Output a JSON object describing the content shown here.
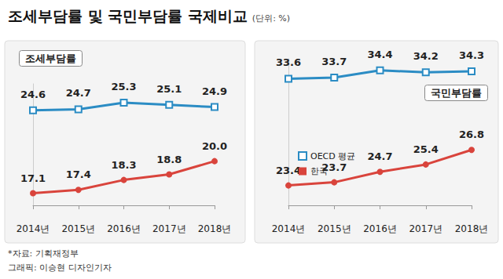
{
  "title": "조세부담률 및 국민부담률 국제비교",
  "unit": "(단위: %)",
  "source": "*자료: 기획재정부",
  "credit": "그래픽: 이승현 디자인기자",
  "chart_data": [
    {
      "type": "line",
      "title": "조세부담률",
      "categories": [
        "2014년",
        "2015년",
        "2016년",
        "2017년",
        "2018년"
      ],
      "series": [
        {
          "name": "OECD 평균",
          "color": "#2b8cc4",
          "marker": "square",
          "values": [
            24.6,
            24.7,
            25.3,
            25.1,
            24.9
          ]
        },
        {
          "name": "한국",
          "color": "#d9443c",
          "marker": "circle",
          "values": [
            17.1,
            17.4,
            18.3,
            18.8,
            20.0
          ],
          "value_labels": [
            "17.1",
            "17.4",
            "18.3",
            "18.8",
            "20.0"
          ]
        }
      ],
      "ylim": [
        16,
        27
      ],
      "tick_labels": "x",
      "data_labels": true
    },
    {
      "type": "line",
      "title": "국민부담률",
      "categories": [
        "2014년",
        "2015년",
        "2016년",
        "2017년",
        "2018년"
      ],
      "series": [
        {
          "name": "OECD 평균",
          "color": "#2b8cc4",
          "marker": "square",
          "values": [
            33.6,
            33.7,
            34.4,
            34.2,
            34.3
          ]
        },
        {
          "name": "한국",
          "color": "#d9443c",
          "marker": "circle",
          "values": [
            23.4,
            23.7,
            24.7,
            25.4,
            26.8
          ]
        }
      ],
      "ylim": [
        21.5,
        35.5
      ],
      "tick_labels": "x",
      "data_labels": true,
      "legend": "left"
    }
  ]
}
